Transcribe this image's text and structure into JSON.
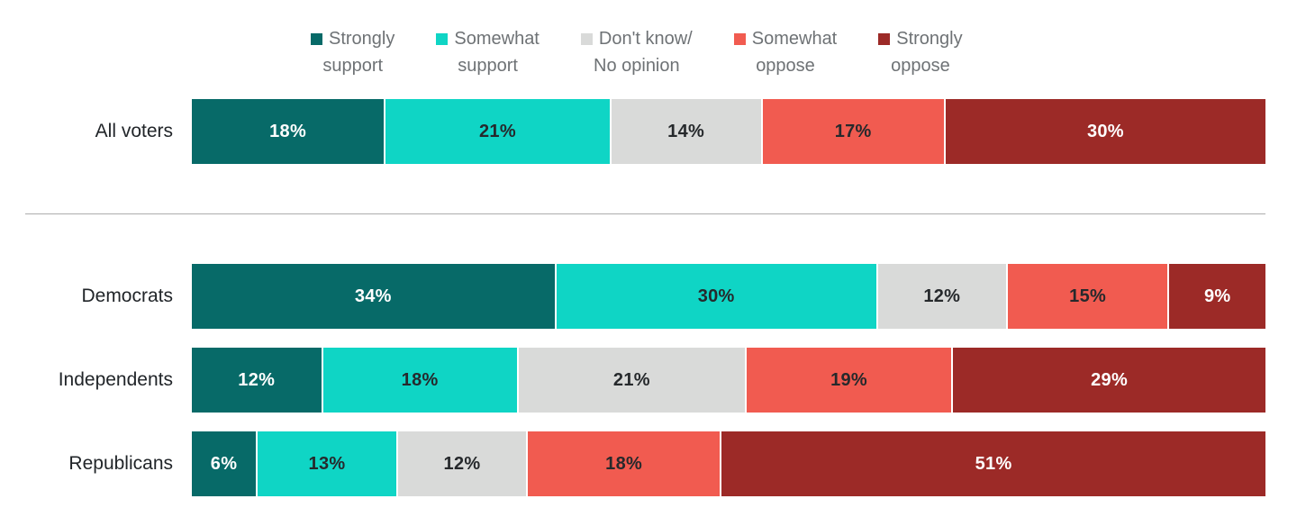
{
  "colors": {
    "strongly_support": "#076A68",
    "somewhat_support": "#0FD5C5",
    "dont_know": "#D9DAD9",
    "somewhat_oppose": "#F15B50",
    "strongly_oppose": "#9C2A27",
    "divider": "#ADADAD",
    "legend_text": "#6E7275",
    "row_label_text": "#212529",
    "value_text_dark": "#26292C",
    "value_text_light": "#FFFFFF"
  },
  "legend": {
    "items": [
      {
        "key": "strongly_support",
        "lines": [
          "Strongly",
          "support"
        ],
        "swatch_color": "#076A68"
      },
      {
        "key": "somewhat_support",
        "lines": [
          "Somewhat",
          "support"
        ],
        "swatch_color": "#0FD5C5"
      },
      {
        "key": "dont_know",
        "lines": [
          "Don't know/",
          "No opinion"
        ],
        "swatch_color": "#D9DAD9"
      },
      {
        "key": "somewhat_oppose",
        "lines": [
          "Somewhat",
          "oppose"
        ],
        "swatch_color": "#F15B50"
      },
      {
        "key": "strongly_oppose",
        "lines": [
          "Strongly",
          "oppose"
        ],
        "swatch_color": "#9C2A27"
      }
    ]
  },
  "chart_data": {
    "type": "bar",
    "orientation": "horizontal",
    "stacked": true,
    "unit": "%",
    "legend_position": "top",
    "value_labels": "inside segments, formatted N%",
    "categories": [
      "All voters",
      "Democrats",
      "Independents",
      "Republicans"
    ],
    "series": [
      {
        "name": "Strongly support",
        "color": "#076A68",
        "text_color": "#FFFFFF",
        "values": [
          18,
          34,
          12,
          6
        ]
      },
      {
        "name": "Somewhat support",
        "color": "#0FD5C5",
        "text_color": "#26292C",
        "values": [
          21,
          30,
          18,
          13
        ]
      },
      {
        "name": "Don't know/No opinion",
        "color": "#D9DAD9",
        "text_color": "#26292C",
        "values": [
          14,
          12,
          21,
          12
        ]
      },
      {
        "name": "Somewhat oppose",
        "color": "#F15B50",
        "text_color": "#26292C",
        "values": [
          17,
          15,
          19,
          18
        ]
      },
      {
        "name": "Strongly oppose",
        "color": "#9C2A27",
        "text_color": "#FFFFFF",
        "values": [
          30,
          9,
          29,
          51
        ]
      }
    ],
    "groups": {
      "top_row": "All voters",
      "below_divider_rows": [
        "Democrats",
        "Independents",
        "Republicans"
      ]
    }
  }
}
